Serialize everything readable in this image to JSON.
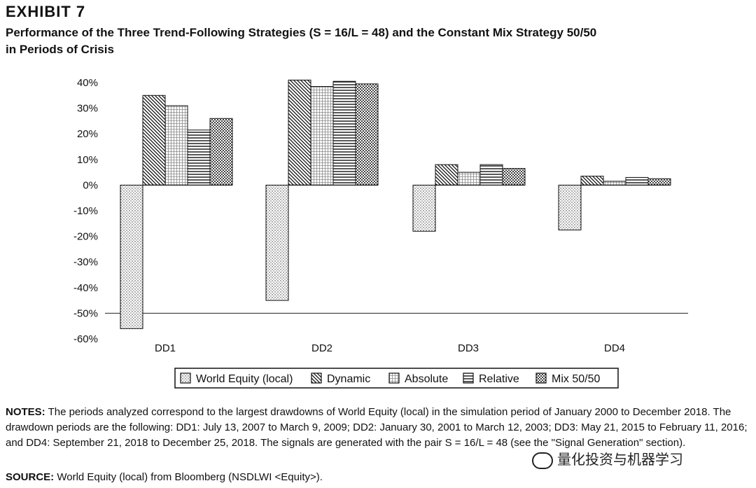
{
  "exhibit_label": "EXHIBIT 7",
  "title_line1": "Performance of the Three Trend-Following Strategies (S = 16/L = 48) and the Constant Mix Strategy 50/50",
  "title_line2": "in Periods of Crisis",
  "notes_label": "NOTES:",
  "notes_text": "The periods analyzed correspond to the largest drawdowns of World Equity (local) in the simulation period of January 2000 to December 2018. The drawdown periods are the following: DD1: July 13, 2007 to March 9, 2009; DD2: January 30, 2001 to March 12, 2003; DD3: May 21, 2015 to February 11, 2016; and DD4: September 21, 2018 to December 25, 2018. The signals are generated with the pair S = 16/L = 48 (see the \"Signal Generation\" section).",
  "source_label": "SOURCE:",
  "source_text": "World Equity (local) from Bloomberg (NSDLWI <Equity>).",
  "watermark_text": "量化投资与机器学习",
  "chart_data": {
    "type": "bar",
    "categories": [
      "DD1",
      "DD2",
      "DD3",
      "DD4"
    ],
    "series": [
      {
        "name": "World Equity (local)",
        "values": [
          -56,
          -45,
          -18,
          -17.5
        ],
        "pattern": "dots"
      },
      {
        "name": "Dynamic",
        "values": [
          35,
          41,
          8,
          3.5
        ],
        "pattern": "diagonal"
      },
      {
        "name": "Absolute",
        "values": [
          31,
          38.5,
          5,
          1.5
        ],
        "pattern": "grid"
      },
      {
        "name": "Relative",
        "values": [
          21.5,
          40.5,
          8,
          3
        ],
        "pattern": "horizontal"
      },
      {
        "name": "Mix 50/50",
        "values": [
          26,
          39.5,
          6.5,
          2.5
        ],
        "pattern": "checker"
      }
    ],
    "ylim": [
      -60,
      40
    ],
    "yticks": [
      "40%",
      "30%",
      "20%",
      "10%",
      "0%",
      "-10%",
      "-20%",
      "-30%",
      "-40%",
      "-50%",
      "-60%"
    ],
    "reference_line": -50,
    "legend_position": "bottom-center",
    "xlabel": "",
    "ylabel": ""
  }
}
